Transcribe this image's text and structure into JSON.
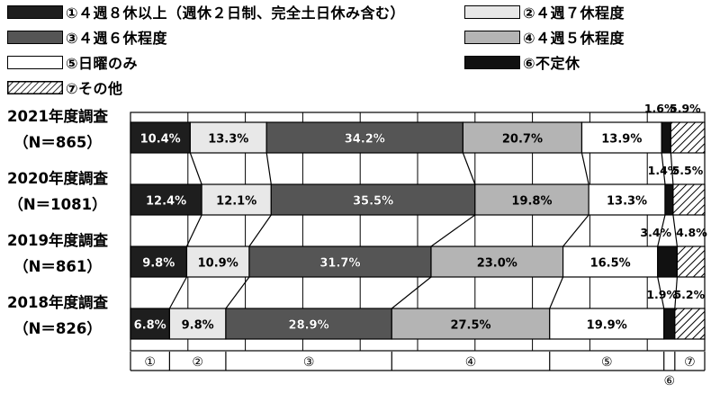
{
  "chart_data": {
    "type": "bar",
    "orientation": "horizontal-stacked-100",
    "legend": [
      {
        "key": "c1",
        "label": "①４週８休以上（週休２日制、完全土日休み含む）",
        "color": "#1e1e1e"
      },
      {
        "key": "c2",
        "label": "②４週７休程度",
        "color": "#e8e8e8"
      },
      {
        "key": "c3",
        "label": "③４週６休程度",
        "color": "#555555"
      },
      {
        "key": "c4",
        "label": "④４週５休程度",
        "color": "#b4b4b4"
      },
      {
        "key": "c5",
        "label": "⑤日曜のみ",
        "color": "#ffffff"
      },
      {
        "key": "c6",
        "label": "⑥不定休",
        "color": "#111111"
      },
      {
        "key": "c7",
        "label": "⑦その他",
        "color": "hatch"
      }
    ],
    "categories": [
      {
        "label_top": "2021年度調査",
        "label_bottom": "（N＝865）"
      },
      {
        "label_top": "2020年度調査",
        "label_bottom": "（N＝1081）"
      },
      {
        "label_top": "2019年度調査",
        "label_bottom": "（N＝861）"
      },
      {
        "label_top": "2018年度調査",
        "label_bottom": "（N＝826）"
      }
    ],
    "series": [
      {
        "key": "c1",
        "values": [
          10.4,
          12.4,
          9.8,
          6.8
        ],
        "labels": [
          "10.4%",
          "12.4%",
          "9.8%",
          "6.8%"
        ]
      },
      {
        "key": "c2",
        "values": [
          13.3,
          12.1,
          10.9,
          9.8
        ],
        "labels": [
          "13.3%",
          "12.1%",
          "10.9%",
          "9.8%"
        ]
      },
      {
        "key": "c3",
        "values": [
          34.2,
          35.5,
          31.7,
          28.9
        ],
        "labels": [
          "34.2%",
          "35.5%",
          "31.7%",
          "28.9%"
        ]
      },
      {
        "key": "c4",
        "values": [
          20.7,
          19.8,
          23.0,
          27.5
        ],
        "labels": [
          "20.7%",
          "19.8%",
          "23.0%",
          "27.5%"
        ]
      },
      {
        "key": "c5",
        "values": [
          13.9,
          13.3,
          16.5,
          19.9
        ],
        "labels": [
          "13.9%",
          "13.3%",
          "16.5%",
          "19.9%"
        ]
      },
      {
        "key": "c6",
        "values": [
          1.6,
          1.4,
          3.4,
          1.9
        ],
        "labels": [
          "1.6%",
          "1.4%",
          "3.4%",
          "1.9%"
        ]
      },
      {
        "key": "c7",
        "values": [
          5.9,
          5.5,
          4.8,
          5.2
        ],
        "labels": [
          "5.9%",
          "5.5%",
          "4.8%",
          "5.2%"
        ]
      }
    ],
    "bottom_axis_labels": [
      "①",
      "②",
      "③",
      "④",
      "⑤",
      "⑥",
      "⑦"
    ],
    "xlim": [
      0,
      100
    ],
    "grid": true
  }
}
